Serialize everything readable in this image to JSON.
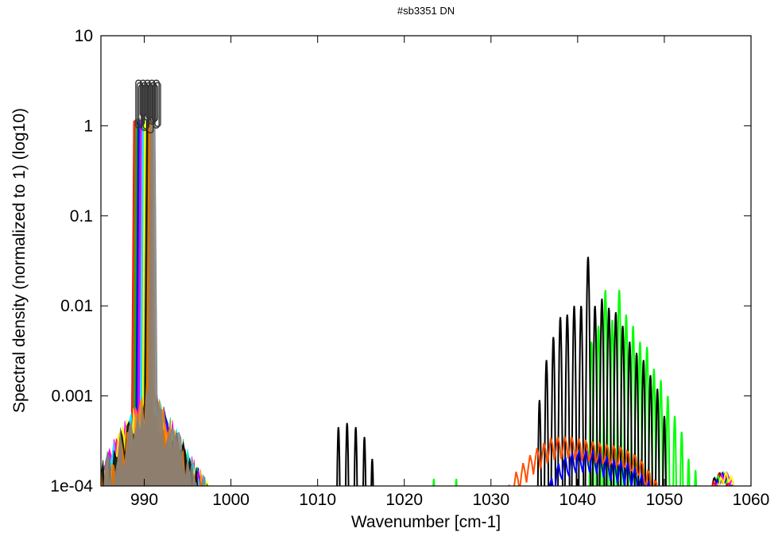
{
  "chart_data": {
    "type": "line",
    "title": "#sb3351 DN",
    "xlabel": "Wavenumber [cm-1]",
    "ylabel": "Spectral density (normalized to 1) (log10)",
    "xlim": [
      985,
      1060
    ],
    "ylim": [
      0.0001,
      10
    ],
    "yscale": "log",
    "grid": false,
    "legend": "none",
    "x_ticks": [
      990,
      1000,
      1010,
      1020,
      1030,
      1040,
      1050,
      1060
    ],
    "x_tick_labels": [
      "990",
      "1000",
      "1010",
      "1020",
      "1030",
      "1040",
      "1050",
      "1060"
    ],
    "y_ticks": [
      0.0001,
      0.001,
      0.01,
      0.1,
      1,
      10
    ],
    "y_tick_labels": [
      "1e-04",
      "0.001",
      "0.01",
      "0.1",
      "1",
      "10"
    ],
    "peak_clusters": [
      {
        "name": "990 cm-1 band (many overlapping series)",
        "center": 990.2,
        "peak": 1.15,
        "colors": [
          "#ff0000",
          "#00c000",
          "#0000ff",
          "#ff00ff",
          "#00ffff",
          "#ffff00",
          "#000000",
          "#ff8000",
          "#808080"
        ]
      },
      {
        "name": "black series",
        "color": "#000000",
        "peaks": [
          [
            1012.4,
            0.00045
          ],
          [
            1013.4,
            0.0005
          ],
          [
            1014.4,
            0.00045
          ],
          [
            1015.4,
            0.00035
          ],
          [
            1016.3,
            0.0002
          ],
          [
            1035.6,
            0.0009
          ],
          [
            1036.4,
            0.0025
          ],
          [
            1037.2,
            0.0045
          ],
          [
            1038.0,
            0.0075
          ],
          [
            1038.8,
            0.008
          ],
          [
            1039.6,
            0.01
          ],
          [
            1040.4,
            0.01
          ],
          [
            1041.2,
            0.035
          ],
          [
            1042.0,
            0.01
          ],
          [
            1042.8,
            0.012
          ],
          [
            1043.6,
            0.0095
          ],
          [
            1044.4,
            0.0085
          ],
          [
            1045.2,
            0.006
          ],
          [
            1046.0,
            0.004
          ],
          [
            1046.8,
            0.003
          ],
          [
            1047.6,
            0.0025
          ],
          [
            1048.4,
            0.0017
          ],
          [
            1049.2,
            0.0012
          ],
          [
            1050.0,
            0.0006
          ]
        ]
      },
      {
        "name": "green series",
        "color": "#00ff00",
        "peaks": [
          [
            1023.4,
            0.00012
          ],
          [
            1026.0,
            0.00012
          ],
          [
            1041.6,
            0.004
          ],
          [
            1042.4,
            0.006
          ],
          [
            1043.2,
            0.015
          ],
          [
            1044.0,
            0.007
          ],
          [
            1044.8,
            0.015
          ],
          [
            1045.6,
            0.008
          ],
          [
            1046.4,
            0.006
          ],
          [
            1047.2,
            0.004
          ],
          [
            1048.0,
            0.0035
          ],
          [
            1048.8,
            0.002
          ],
          [
            1049.6,
            0.0015
          ],
          [
            1050.4,
            0.001
          ],
          [
            1051.2,
            0.0006
          ],
          [
            1052.0,
            0.0004
          ],
          [
            1052.8,
            0.0002
          ],
          [
            1053.6,
            0.00015
          ]
        ]
      },
      {
        "name": "orange series",
        "color": "#ff5000",
        "envelope": [
          [
            1031.5,
            8e-05
          ],
          [
            1033,
            0.00015
          ],
          [
            1035,
            0.00025
          ],
          [
            1037,
            0.00035
          ],
          [
            1039,
            0.00036
          ],
          [
            1041,
            0.00033
          ],
          [
            1043,
            0.0003
          ],
          [
            1045,
            0.00028
          ],
          [
            1047,
            0.00022
          ],
          [
            1049,
            0.00012
          ],
          [
            1050,
            8e-05
          ]
        ]
      },
      {
        "name": "blue series",
        "color": "#0000ff",
        "envelope": [
          [
            1036,
            8e-05
          ],
          [
            1038,
            0.0002
          ],
          [
            1040,
            0.00025
          ],
          [
            1042,
            0.00025
          ],
          [
            1044,
            0.0002
          ],
          [
            1046,
            0.00018
          ],
          [
            1048,
            0.00012
          ],
          [
            1050,
            8e-05
          ]
        ]
      },
      {
        "name": "1057 cm-1 band",
        "center": 1056.8,
        "peak": 0.00014,
        "colors": [
          "#000000",
          "#ff0000",
          "#00ff00",
          "#0000ff",
          "#ff00ff",
          "#ffff00"
        ]
      }
    ]
  }
}
